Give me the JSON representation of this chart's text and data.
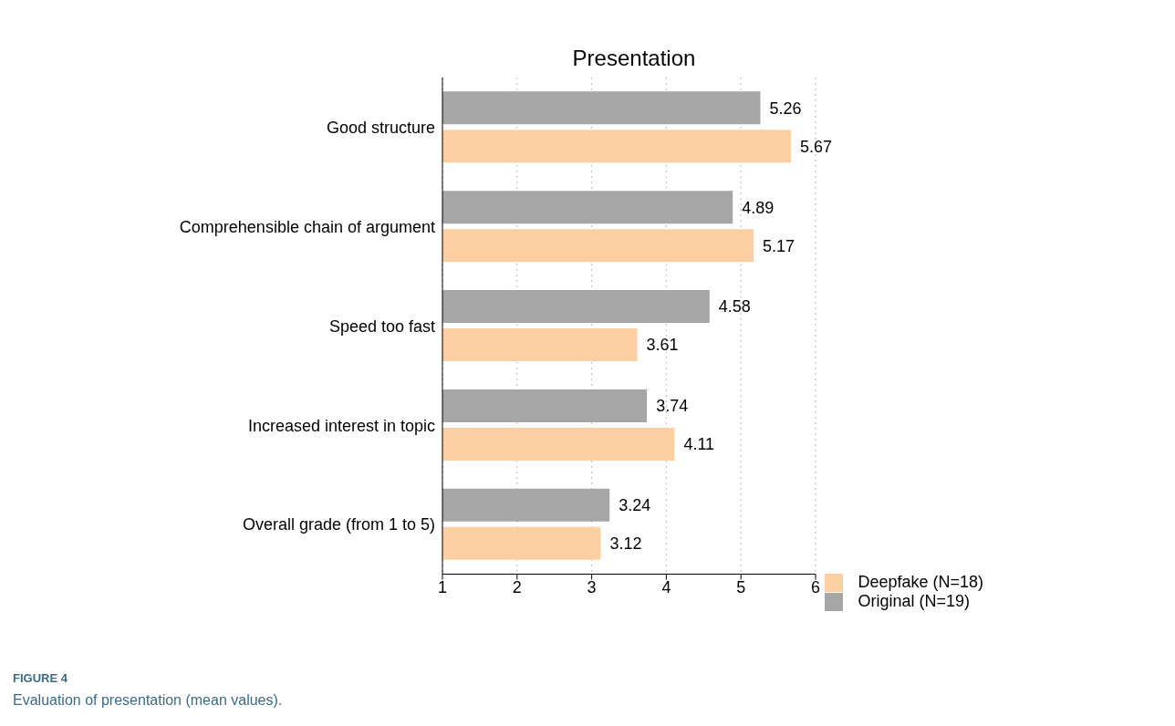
{
  "chart_data": {
    "type": "bar",
    "orientation": "horizontal",
    "title": "Presentation",
    "categories": [
      "Good structure",
      "Comprehensible chain of argument",
      "Speed too fast",
      "Increased interest in topic",
      "Overall grade (from 1 to 5)"
    ],
    "series": [
      {
        "name": "Original (N=19)",
        "color": "#a6a6a6",
        "values": [
          5.26,
          4.89,
          4.58,
          3.74,
          3.24
        ]
      },
      {
        "name": "Deepfake (N=18)",
        "color": "#fbcfa1",
        "values": [
          5.67,
          5.17,
          3.61,
          4.11,
          3.12
        ]
      }
    ],
    "xlim": [
      1,
      6
    ],
    "xticks": [
      1,
      2,
      3,
      4,
      5,
      6
    ],
    "grid": "x",
    "legend": "bottom right",
    "data_labels": true,
    "annotations": [
      "FIGURE 4",
      "Evaluation of presentation (mean values)."
    ]
  }
}
